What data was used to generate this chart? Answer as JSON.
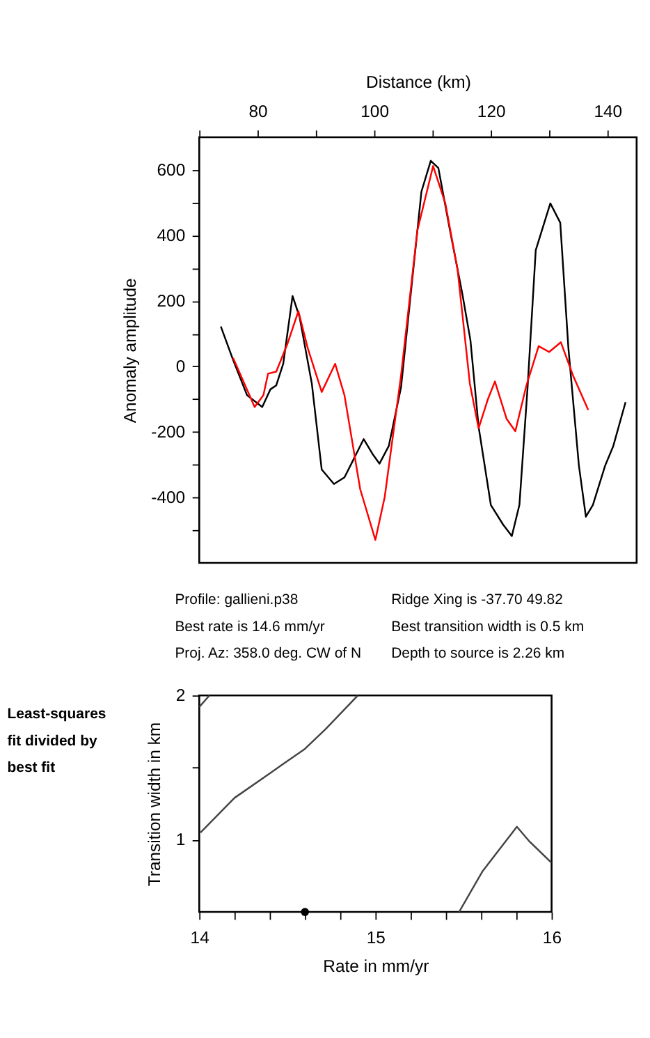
{
  "chart_data": [
    {
      "type": "line",
      "xlabel": "Distance (km)",
      "ylabel": "Anomaly amplitude",
      "xlim": [
        70,
        145
      ],
      "xticks": [
        {
          "value": 70,
          "label": null
        },
        80,
        {
          "value": 90,
          "label": null
        },
        100,
        {
          "value": 110,
          "label": null
        },
        120,
        {
          "value": 130,
          "label": null
        },
        140
      ],
      "ylim": [
        -600,
        700
      ],
      "yticks": [
        {
          "value": -500,
          "label": null
        },
        -400,
        {
          "value": -300,
          "label": null
        },
        -200,
        {
          "value": -100,
          "label": null
        },
        0,
        {
          "value": 100,
          "label": null
        },
        200,
        {
          "value": 300,
          "label": null
        },
        400,
        {
          "value": 500,
          "label": null
        },
        600
      ],
      "grid": false,
      "line_style": "solid",
      "series": [
        {
          "color": "#000000",
          "x": [
            73.7,
            75.8,
            78.2,
            80.8,
            82.2,
            83.2,
            84.4,
            86.0,
            87.2,
            89.3,
            91.0,
            93.1,
            94.9,
            98.2,
            99.7,
            100.9,
            102.5,
            104.6,
            106.7,
            108.1,
            109.7,
            111.0,
            113.0,
            115.1,
            116.5,
            117.9,
            120.0,
            122.1,
            123.6,
            124.9,
            126.3,
            127.7,
            130.2,
            131.9,
            133.3,
            135.1,
            136.3,
            137.5,
            139.6,
            141.0,
            143.1
          ],
          "values": [
            122,
            20,
            -88,
            -124,
            -70,
            -58,
            8,
            215,
            151,
            -52,
            -315,
            -359,
            -339,
            -222,
            -267,
            -297,
            -243,
            -64,
            295,
            534,
            628,
            606,
            415,
            223,
            80,
            -184,
            -423,
            -483,
            -518,
            -423,
            -64,
            355,
            498,
            439,
            56,
            -303,
            -459,
            -423,
            -303,
            -243,
            -109
          ]
        },
        {
          "color": "#ff0000",
          "x": [
            75.8,
            79.5,
            81.0,
            81.8,
            83.2,
            85.1,
            87.0,
            88.6,
            91.0,
            93.3,
            94.9,
            97.6,
            100.2,
            101.8,
            104.6,
            107.4,
            110.1,
            112.2,
            114.3,
            116.4,
            117.9,
            119.5,
            120.7,
            122.7,
            124.2,
            126.1,
            128.2,
            130.0,
            132.0,
            134.1,
            136.7
          ],
          "values": [
            26,
            -124,
            -88,
            -22,
            -16,
            68,
            169,
            56,
            -78,
            8,
            -88,
            -375,
            -530,
            -399,
            -28,
            415,
            612,
            498,
            295,
            -52,
            -189,
            -100,
            -46,
            -160,
            -198,
            -58,
            62,
            44,
            74,
            -28,
            -133
          ]
        }
      ],
      "annotations": [
        "Profile: gallieni.p38",
        "Best rate is 14.6 mm/yr",
        "Proj. Az: 358.0 deg. CW of N",
        "Ridge Xing is -37.70 49.82",
        "Best transition width is 0.5 km",
        "Depth to source is   2.26 km"
      ]
    },
    {
      "type": "line",
      "xlabel": "Rate in mm/yr",
      "ylabel": "Transition width in km",
      "xlim": [
        14,
        16
      ],
      "xticks": [
        14,
        {
          "value": 14.2,
          "label": null
        },
        {
          "value": 14.4,
          "label": null
        },
        {
          "value": 14.6,
          "label": null
        },
        {
          "value": 14.8,
          "label": null
        },
        15,
        {
          "value": 15.2,
          "label": null
        },
        {
          "value": 15.4,
          "label": null
        },
        {
          "value": 15.6,
          "label": null
        },
        {
          "value": 15.8,
          "label": null
        },
        16
      ],
      "ylim": [
        0.5,
        2
      ],
      "yticks": [
        1,
        {
          "value": 1.5,
          "label": null
        },
        2
      ],
      "grid": false,
      "line_style": "solid",
      "series": [
        {
          "color": "#444444",
          "x": [
            14.0,
            14.058
          ],
          "values": [
            1.92,
            2.0
          ]
        },
        {
          "color": "#444444",
          "x": [
            14.007,
            14.2,
            14.4,
            14.47,
            14.6,
            14.72,
            14.9
          ],
          "values": [
            1.05,
            1.29,
            1.46,
            1.52,
            1.63,
            1.77,
            2.0
          ]
        },
        {
          "color": "#444444",
          "x": [
            15.475,
            15.607,
            15.803,
            15.873,
            16.0
          ],
          "values": [
            0.5,
            0.78,
            1.09,
            0.99,
            0.84
          ]
        },
        {
          "type": "scatter",
          "marker": "circle",
          "color": "#000000",
          "x": [
            14.6
          ],
          "values": [
            0.5
          ]
        }
      ],
      "annotations": [
        "Least-squares fit divided by best fit"
      ]
    }
  ]
}
